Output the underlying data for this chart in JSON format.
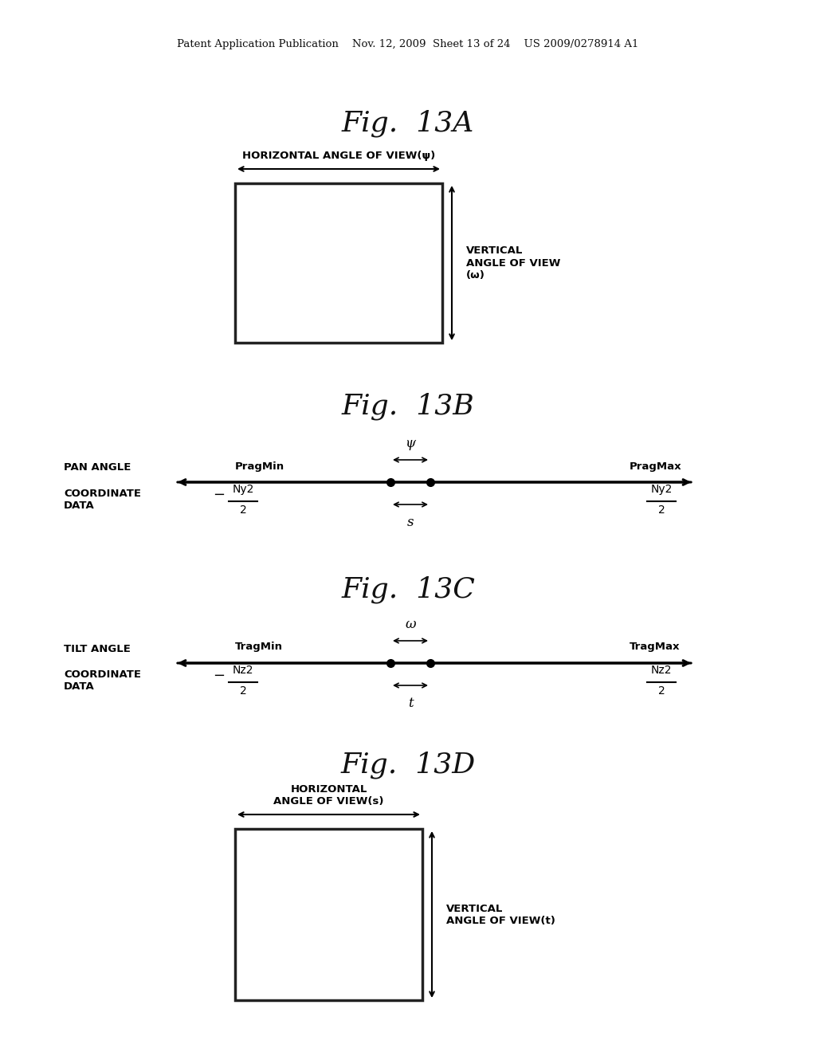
{
  "bg_color": "#ffffff",
  "header_text": "Patent Application Publication    Nov. 12, 2009  Sheet 13 of 24    US 2009/0278914 A1",
  "fig13A_title": "Fig.  13A",
  "fig13B_title": "Fig.  13B",
  "fig13C_title": "Fig.  13C",
  "fig13D_title": "Fig.  13D",
  "psi_label": "ψ",
  "omega_label": "ω",
  "s_label": "s",
  "t_label": "t",
  "pan_angle_label": "PAN ANGLE",
  "coord_data_label": "COORDINATE\nDATA",
  "tilt_angle_label": "TILT ANGLE",
  "pragmin_label": "PragMin",
  "pragmax_label": "PragMax",
  "tragmin_label": "TragMin",
  "tragmax_label": "TragMax",
  "ny2_label": "Ny2",
  "nz2_label": "Nz2",
  "minus_sign": "−",
  "horiz_label_13A": "HORIZONTAL ANGLE OF VIEW(ψ)",
  "vert_label_13A": "VERTICAL\nANGLE OF VIEW\n(ω)",
  "horiz_label_13D": "HORIZONTAL\nANGLE OF VIEW(s)",
  "vert_label_13D": "VERTICAL\nANGLE OF VIEW(t)"
}
